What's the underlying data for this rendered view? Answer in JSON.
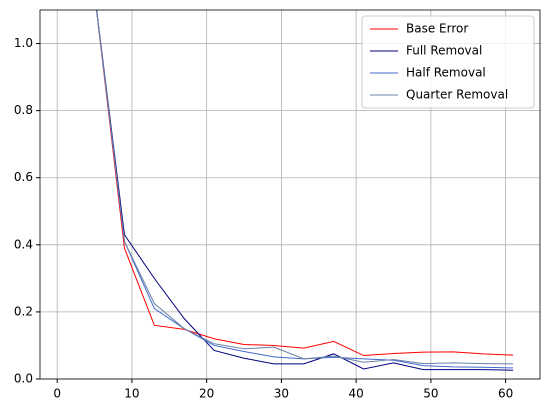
{
  "chart_data": {
    "type": "line",
    "x": [
      5,
      9,
      13,
      17,
      21,
      25,
      29,
      33,
      37,
      41,
      45,
      49,
      53,
      57,
      61
    ],
    "series": [
      {
        "name": "Base Error",
        "color": "#ff0000",
        "values": [
          1.15,
          0.39,
          0.16,
          0.148,
          0.12,
          0.103,
          0.1,
          0.092,
          0.112,
          0.07,
          0.076,
          0.08,
          0.081,
          0.075,
          0.071
        ]
      },
      {
        "name": "Full Removal",
        "color": "#00007f",
        "values": [
          1.15,
          0.43,
          0.3,
          0.18,
          0.085,
          0.062,
          0.045,
          0.045,
          0.075,
          0.03,
          0.048,
          0.028,
          0.028,
          0.028,
          0.026
        ]
      },
      {
        "name": "Half Removal",
        "color": "#4169cd",
        "values": [
          1.15,
          0.41,
          0.21,
          0.15,
          0.1,
          0.082,
          0.066,
          0.06,
          0.065,
          0.06,
          0.056,
          0.04,
          0.036,
          0.035,
          0.033
        ]
      },
      {
        "name": "Quarter Removal",
        "color": "#6a80a8",
        "values": [
          1.15,
          0.41,
          0.225,
          0.15,
          0.105,
          0.09,
          0.095,
          0.06,
          0.068,
          0.05,
          0.058,
          0.046,
          0.048,
          0.046,
          0.045
        ]
      }
    ],
    "xlim": [
      -2.3,
      64.6
    ],
    "xticks": [
      0,
      10,
      20,
      30,
      40,
      50,
      60
    ],
    "ylim": [
      0,
      1.1
    ],
    "yticks": [
      {
        "value": 0,
        "label": "0.0"
      },
      0.2,
      0.4,
      0.6,
      0.8,
      {
        "value": 1,
        "label": "1.0"
      }
    ],
    "grid": true,
    "legend": "upper-right"
  }
}
